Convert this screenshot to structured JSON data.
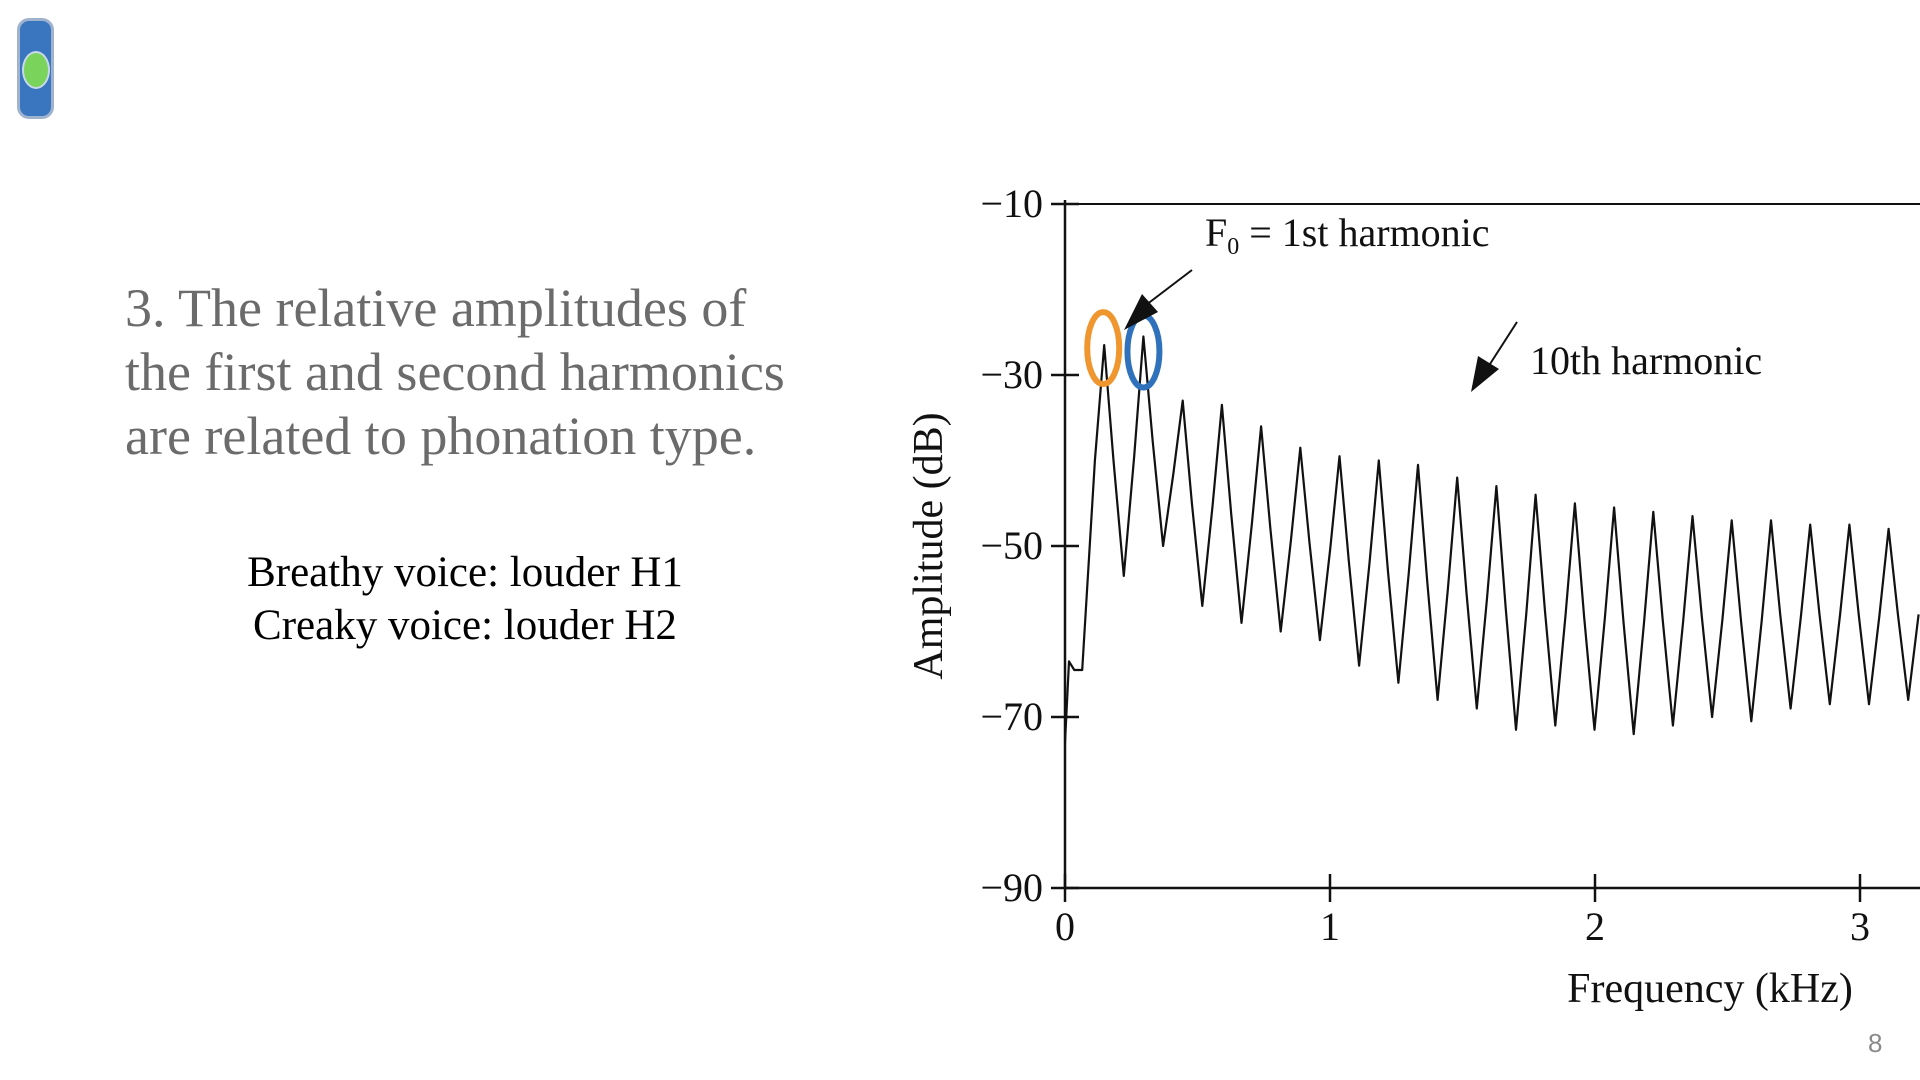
{
  "slide": {
    "heading_lines": [
      "3. The relative amplitudes of",
      "the first and second harmonics",
      "are related to phonation type."
    ],
    "notes": [
      "Breathy voice: louder H1",
      "Creaky voice: louder H2"
    ],
    "page_number": "8"
  },
  "colors": {
    "toggle_track": "#3a76bf",
    "toggle_knob": "#7ad35a",
    "highlight_h1": "#f0962f",
    "highlight_h2": "#2f72bb",
    "curve": "#111111"
  },
  "chart_data": {
    "type": "line",
    "title": "",
    "xlabel": "Frequency (kHz)",
    "ylabel": "Amplitude (dB)",
    "xlim": [
      0,
      3.25
    ],
    "ylim": [
      -90,
      -10
    ],
    "xticks": [
      0,
      1,
      2,
      3
    ],
    "yticks": [
      -10,
      -30,
      -50,
      -70,
      -90
    ],
    "tick_labels_x": [
      "0",
      "1",
      "2",
      "3"
    ],
    "tick_labels_y": [
      "−10",
      "−30",
      "−50",
      "−70",
      "−90"
    ],
    "grid": false,
    "harmonics": {
      "f0_khz": 0.148,
      "peaks_db": [
        -26.5,
        -25.5,
        -33,
        -33.5,
        -36,
        -38.5,
        -39.5,
        -40,
        -40.5,
        -42,
        -43,
        -44,
        -45,
        -45.5,
        -46,
        -46.5,
        -47,
        -47,
        -47.5,
        -47.5,
        -48,
        -48
      ],
      "troughs_db": [
        -53.5,
        -50,
        -57,
        -59,
        -60,
        -61,
        -64,
        -66,
        -68,
        -69,
        -71.5,
        -71,
        -71.5,
        -72,
        -71,
        -70,
        -70.5,
        -69,
        -68.5,
        -68.5,
        -68,
        -68
      ]
    },
    "annotations": [
      {
        "text_main": "F",
        "text_sub": "0",
        "text_rest": " = 1st harmonic",
        "harmonic": 1
      },
      {
        "text_main": "10th harmonic",
        "harmonic": 10
      }
    ],
    "highlights": [
      {
        "harmonic": 1,
        "label": "H1"
      },
      {
        "harmonic": 2,
        "label": "H2"
      }
    ]
  }
}
